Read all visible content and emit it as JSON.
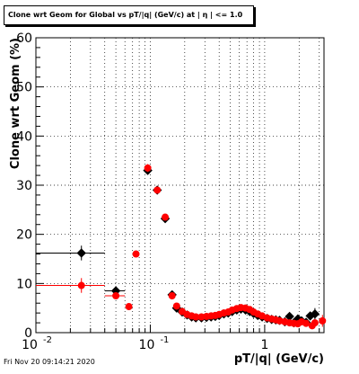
{
  "chart_data": {
    "type": "scatter",
    "title": "Clone wrt Geom for Global vs pT/|q| (GeV/c) at |  η | <= 1.0",
    "xlabel": "pT/|q| (GeV/c)",
    "ylabel": "Clone wrt Geom (%)",
    "xscale": "log",
    "xlim": [
      0.01,
      3.3
    ],
    "ylim": [
      0,
      60
    ],
    "grid": true,
    "x_tick_labels": [
      "10",
      "-2",
      "10",
      "-1",
      "1"
    ],
    "y_tick_labels": [
      "0",
      "10",
      "20",
      "30",
      "40",
      "50",
      "60"
    ],
    "series": [
      {
        "color": "#000000",
        "marker": "diamond",
        "points": [
          {
            "x": 0.025,
            "y": 16.2,
            "xerr": [
              0.01,
              0.04
            ],
            "yerr": 1.5
          },
          {
            "x": 0.05,
            "y": 8.5,
            "xerr": [
              0.04,
              0.06
            ]
          },
          {
            "x": 0.095,
            "y": 33.0,
            "yerr": 0.8
          },
          {
            "x": 0.115,
            "y": 29.0
          },
          {
            "x": 0.135,
            "y": 23.2
          },
          {
            "x": 0.155,
            "y": 7.7
          },
          {
            "x": 0.17,
            "y": 5.0
          },
          {
            "x": 0.19,
            "y": 4.2
          },
          {
            "x": 0.21,
            "y": 3.6
          },
          {
            "x": 0.23,
            "y": 3.2
          },
          {
            "x": 0.25,
            "y": 3.0
          },
          {
            "x": 0.28,
            "y": 3.0
          },
          {
            "x": 0.31,
            "y": 3.1
          },
          {
            "x": 0.34,
            "y": 3.2
          },
          {
            "x": 0.37,
            "y": 3.3
          },
          {
            "x": 0.4,
            "y": 3.5
          },
          {
            "x": 0.44,
            "y": 3.8
          },
          {
            "x": 0.48,
            "y": 4.0
          },
          {
            "x": 0.52,
            "y": 4.3
          },
          {
            "x": 0.57,
            "y": 4.6
          },
          {
            "x": 0.62,
            "y": 4.8
          },
          {
            "x": 0.68,
            "y": 4.6
          },
          {
            "x": 0.74,
            "y": 4.3
          },
          {
            "x": 0.8,
            "y": 3.9
          },
          {
            "x": 0.87,
            "y": 3.5
          },
          {
            "x": 0.95,
            "y": 3.2
          },
          {
            "x": 1.05,
            "y": 2.9
          },
          {
            "x": 1.15,
            "y": 2.7
          },
          {
            "x": 1.25,
            "y": 2.6
          },
          {
            "x": 1.35,
            "y": 2.5
          },
          {
            "x": 1.5,
            "y": 2.2
          },
          {
            "x": 1.65,
            "y": 3.3
          },
          {
            "x": 1.8,
            "y": 2.0
          },
          {
            "x": 1.95,
            "y": 2.8
          },
          {
            "x": 2.1,
            "y": 2.4
          },
          {
            "x": 2.3,
            "y": 2.1
          },
          {
            "x": 2.5,
            "y": 3.4
          },
          {
            "x": 2.75,
            "y": 3.8,
            "yerr": 1.2
          }
        ]
      },
      {
        "color": "#ff0000",
        "marker": "circle",
        "points": [
          {
            "x": 0.025,
            "y": 9.6,
            "xerr": [
              0.01,
              0.04
            ],
            "yerr": 1.5
          },
          {
            "x": 0.05,
            "y": 7.5,
            "xerr": [
              0.04,
              0.06
            ]
          },
          {
            "x": 0.065,
            "y": 5.3
          },
          {
            "x": 0.075,
            "y": 16.0
          },
          {
            "x": 0.095,
            "y": 33.5,
            "yerr": 0.8
          },
          {
            "x": 0.115,
            "y": 29.0
          },
          {
            "x": 0.135,
            "y": 23.5
          },
          {
            "x": 0.155,
            "y": 7.5
          },
          {
            "x": 0.17,
            "y": 5.4
          },
          {
            "x": 0.19,
            "y": 4.3
          },
          {
            "x": 0.21,
            "y": 3.7
          },
          {
            "x": 0.23,
            "y": 3.4
          },
          {
            "x": 0.25,
            "y": 3.2
          },
          {
            "x": 0.28,
            "y": 3.2
          },
          {
            "x": 0.31,
            "y": 3.3
          },
          {
            "x": 0.34,
            "y": 3.4
          },
          {
            "x": 0.37,
            "y": 3.5
          },
          {
            "x": 0.4,
            "y": 3.7
          },
          {
            "x": 0.44,
            "y": 4.0
          },
          {
            "x": 0.48,
            "y": 4.2
          },
          {
            "x": 0.52,
            "y": 4.6
          },
          {
            "x": 0.57,
            "y": 4.9
          },
          {
            "x": 0.62,
            "y": 5.1
          },
          {
            "x": 0.68,
            "y": 5.0
          },
          {
            "x": 0.74,
            "y": 4.7
          },
          {
            "x": 0.8,
            "y": 4.2
          },
          {
            "x": 0.87,
            "y": 3.8
          },
          {
            "x": 0.95,
            "y": 3.4
          },
          {
            "x": 1.05,
            "y": 3.0
          },
          {
            "x": 1.15,
            "y": 2.8
          },
          {
            "x": 1.25,
            "y": 2.6
          },
          {
            "x": 1.35,
            "y": 2.4
          },
          {
            "x": 1.5,
            "y": 2.2
          },
          {
            "x": 1.65,
            "y": 2.0
          },
          {
            "x": 1.8,
            "y": 1.9
          },
          {
            "x": 1.95,
            "y": 1.8
          },
          {
            "x": 2.1,
            "y": 2.2
          },
          {
            "x": 2.3,
            "y": 1.9
          },
          {
            "x": 2.6,
            "y": 1.4
          },
          {
            "x": 2.75,
            "y": 2.0
          },
          {
            "x": 3.2,
            "y": 2.4,
            "yerr": 1.2
          }
        ]
      }
    ]
  },
  "footer": {
    "timestamp": "Fri Nov 20 09:14:21 2020"
  }
}
